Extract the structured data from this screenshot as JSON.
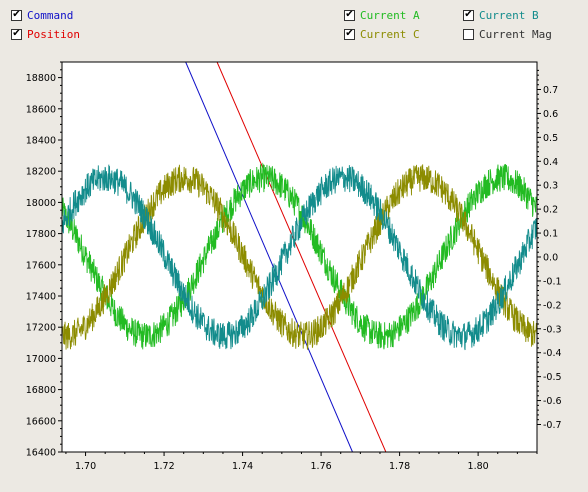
{
  "legend": [
    {
      "label": "Command",
      "checked": true,
      "color": "#1010c8"
    },
    {
      "label": "Position",
      "checked": true,
      "color": "#e00000"
    },
    {
      "label": "Current A",
      "checked": true,
      "color": "#22bb22"
    },
    {
      "label": "Current C",
      "checked": true,
      "color": "#8c8c00"
    },
    {
      "label": "Current B",
      "checked": true,
      "color": "#138c8c"
    },
    {
      "label": "Current Mag",
      "checked": false,
      "color": "#333333"
    }
  ],
  "chart_data": {
    "type": "line",
    "xlim": [
      1.694,
      1.815
    ],
    "ylim_left": [
      16400,
      18900
    ],
    "ylim_right": [
      -0.815,
      0.815
    ],
    "x_ticks": [
      1.7,
      1.72,
      1.74,
      1.76,
      1.78,
      1.8
    ],
    "x_tick_labels": [
      "1.70",
      "1.72",
      "1.74",
      "1.76",
      "1.78",
      "1.80"
    ],
    "y_left_ticks": [
      16400,
      16600,
      16800,
      17000,
      17200,
      17400,
      17600,
      17800,
      18000,
      18200,
      18400,
      18600,
      18800
    ],
    "y_left_tick_labels": [
      "16400",
      "16600",
      "16800",
      "17000",
      "17200",
      "17400",
      "17600",
      "17800",
      "18000",
      "18200",
      "18400",
      "18600",
      "18800"
    ],
    "y_right_ticks": [
      -0.7,
      -0.6,
      -0.5,
      -0.4,
      -0.3,
      -0.2,
      -0.1,
      0.0,
      0.1,
      0.2,
      0.3,
      0.4,
      0.5,
      0.6,
      0.7
    ],
    "y_right_tick_labels": [
      "-0.7",
      "-0.6",
      "-0.5",
      "-0.4",
      "-0.3",
      "-0.2",
      "-0.1",
      "0.0",
      "0.1",
      "0.2",
      "0.3",
      "0.4",
      "0.5",
      "0.6",
      "0.7"
    ],
    "grid": false,
    "series": [
      {
        "name": "Command",
        "axis": "left",
        "color": "#1010c8",
        "x": [
          1.7255,
          1.768
        ],
        "y": [
          18900,
          16400
        ]
      },
      {
        "name": "Position",
        "axis": "left",
        "color": "#e00000",
        "x": [
          1.7335,
          1.7765
        ],
        "y": [
          18900,
          16400
        ]
      },
      {
        "name": "Current A",
        "axis": "right",
        "color": "#22bb22",
        "amplitude": 0.33,
        "period": 0.0605,
        "phase_deg": 0,
        "peak_x": 1.7455,
        "noise": 0.06
      },
      {
        "name": "Current C",
        "axis": "right",
        "color": "#8c8c00",
        "amplitude": 0.33,
        "period": 0.0605,
        "phase_deg": 240,
        "peak_x": 1.7252,
        "noise": 0.06
      },
      {
        "name": "Current B",
        "axis": "right",
        "color": "#138c8c",
        "amplitude": 0.33,
        "period": 0.0605,
        "phase_deg": 120,
        "peak_x": 1.7657,
        "noise": 0.06
      }
    ]
  }
}
